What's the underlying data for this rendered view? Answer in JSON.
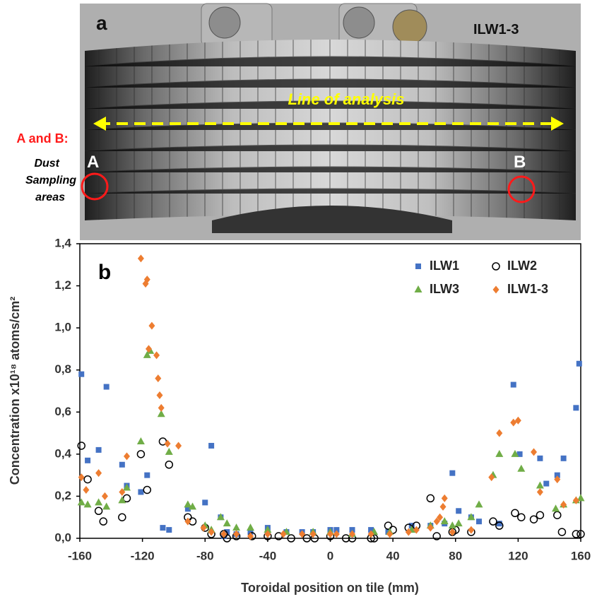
{
  "photo": {
    "panel_label": "a",
    "sample": "ILW1-3",
    "line_label": "Line of analysis",
    "areas_title": "A and B:",
    "areas_desc": [
      "Dust",
      "Sampling",
      "areas"
    ],
    "point_a": "A",
    "point_b": "B"
  },
  "chart_data": {
    "type": "scatter",
    "title": "b",
    "x_label": "Toroidal position on tile (mm)",
    "y_label": "Concentration x10¹⁸ atoms/cm²",
    "xlim": [
      -160,
      160
    ],
    "xticks": [
      -160,
      -120,
      -80,
      -40,
      0,
      40,
      80,
      120,
      160
    ],
    "ylim": [
      0,
      1.4
    ],
    "yticks": [
      {
        "value": 0,
        "label": "0,0"
      },
      {
        "value": 0.2,
        "label": "0,2"
      },
      {
        "value": 0.4,
        "label": "0,4"
      },
      {
        "value": 0.6,
        "label": "0,6"
      },
      {
        "value": 0.8,
        "label": "0,8"
      },
      {
        "value": 1.0,
        "label": "1,0"
      },
      {
        "value": 1.2,
        "label": "1,2"
      },
      {
        "value": 1.4,
        "label": "1,4"
      }
    ],
    "legend": "upper right",
    "series": [
      {
        "name": "ILW1",
        "color": "#4472c4",
        "marker": "square",
        "x": [
          -159,
          -155,
          -148,
          -143,
          -133,
          -130,
          -121,
          -117,
          -107,
          -103,
          -91,
          -80,
          -76,
          -70,
          -68,
          -66,
          -60,
          -51,
          -40,
          -28,
          -18,
          -11,
          0,
          4,
          14,
          26,
          37,
          52,
          64,
          73,
          78,
          82,
          90,
          95,
          108,
          117,
          121,
          134,
          138,
          145,
          149,
          157,
          159
        ],
        "values": [
          0.78,
          0.37,
          0.42,
          0.72,
          0.35,
          0.25,
          0.22,
          0.3,
          0.05,
          0.04,
          0.14,
          0.17,
          0.44,
          0.1,
          0.01,
          0.03,
          0.02,
          0.03,
          0.05,
          0.03,
          0.03,
          0.03,
          0.04,
          0.04,
          0.04,
          0.04,
          0.03,
          0.06,
          0.06,
          0.07,
          0.31,
          0.13,
          0.1,
          0.08,
          0.07,
          0.73,
          0.4,
          0.38,
          0.26,
          0.3,
          0.38,
          0.62,
          0.83
        ]
      },
      {
        "name": "ILW2",
        "color": "#000000",
        "marker": "circle",
        "x": [
          -159,
          -155,
          -148,
          -145,
          -133,
          -130,
          -121,
          -117,
          -107,
          -103,
          -91,
          -88,
          -80,
          -76,
          -68,
          -66,
          -60,
          -50,
          -40,
          -33,
          -25,
          -15,
          -10,
          0,
          10,
          14,
          26,
          28,
          37,
          40,
          50,
          55,
          64,
          68,
          78,
          80,
          90,
          104,
          108,
          118,
          122,
          130,
          134,
          145,
          148,
          157,
          160
        ],
        "values": [
          0.44,
          0.28,
          0.13,
          0.08,
          0.1,
          0.19,
          0.4,
          0.23,
          0.46,
          0.35,
          0.1,
          0.08,
          0.05,
          0.02,
          0.02,
          0.0,
          0.01,
          0.01,
          0.01,
          0.01,
          0.0,
          0.0,
          0.0,
          0.01,
          0.0,
          0.0,
          0.0,
          0.0,
          0.06,
          0.04,
          0.05,
          0.06,
          0.19,
          0.01,
          0.03,
          0.04,
          0.03,
          0.08,
          0.06,
          0.12,
          0.1,
          0.09,
          0.11,
          0.11,
          0.03,
          0.02,
          0.02
        ]
      },
      {
        "name": "ILW3",
        "color": "#70ad47",
        "marker": "triangle",
        "x": [
          -159,
          -155,
          -148,
          -143,
          -133,
          -130,
          -121,
          -117,
          -115,
          -108,
          -103,
          -91,
          -88,
          -80,
          -76,
          -70,
          -66,
          -60,
          -51,
          -40,
          -28,
          -11,
          0,
          14,
          28,
          38,
          52,
          64,
          73,
          78,
          82,
          90,
          95,
          104,
          108,
          118,
          122,
          134,
          144,
          149,
          157,
          160
        ],
        "values": [
          0.17,
          0.16,
          0.17,
          0.15,
          0.18,
          0.24,
          0.46,
          0.87,
          0.89,
          0.59,
          0.41,
          0.16,
          0.15,
          0.06,
          0.04,
          0.1,
          0.07,
          0.05,
          0.05,
          0.04,
          0.03,
          0.03,
          0.03,
          0.02,
          0.03,
          0.03,
          0.04,
          0.06,
          0.08,
          0.06,
          0.07,
          0.1,
          0.16,
          0.3,
          0.4,
          0.4,
          0.33,
          0.25,
          0.14,
          0.16,
          0.18,
          0.19
        ]
      },
      {
        "name": "ILW1-3",
        "color": "#ed7d31",
        "marker": "diamond",
        "x": [
          -159,
          -156,
          -148,
          -144,
          -133,
          -130,
          -121,
          -118,
          -117,
          -116,
          -114,
          -111,
          -110,
          -109,
          -108,
          -104,
          -97,
          -91,
          -81,
          -76,
          -68,
          -60,
          -51,
          -40,
          -30,
          -18,
          -11,
          0,
          4,
          14,
          26,
          38,
          50,
          55,
          64,
          68,
          70,
          72,
          73,
          78,
          90,
          103,
          108,
          117,
          120,
          130,
          134,
          145,
          149,
          157
        ],
        "values": [
          0.29,
          0.23,
          0.31,
          0.2,
          0.22,
          0.39,
          1.33,
          1.21,
          1.23,
          0.9,
          1.01,
          0.87,
          0.76,
          0.68,
          0.62,
          0.45,
          0.44,
          0.08,
          0.05,
          0.03,
          0.02,
          0.02,
          0.01,
          0.02,
          0.02,
          0.02,
          0.02,
          0.02,
          0.02,
          0.02,
          0.02,
          0.02,
          0.03,
          0.04,
          0.05,
          0.08,
          0.1,
          0.15,
          0.19,
          0.03,
          0.04,
          0.29,
          0.5,
          0.55,
          0.56,
          0.41,
          0.22,
          0.28,
          0.16,
          0.18
        ]
      }
    ]
  }
}
